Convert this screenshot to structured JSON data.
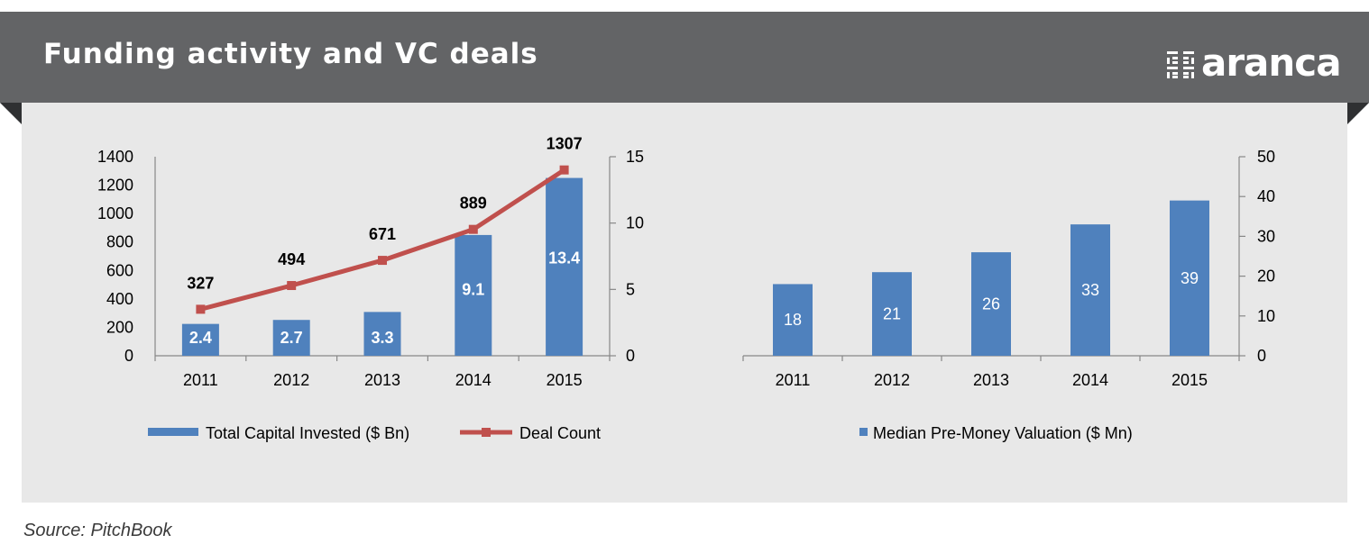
{
  "header": {
    "title": "Funding activity and VC deals",
    "logo_text": "aranca"
  },
  "source": "Source: PitchBook",
  "colors": {
    "header_bg": "#636466",
    "panel_bg": "#e8e8e8",
    "bar": "#4f81bd",
    "line": "#c0504d"
  },
  "chart_data": [
    {
      "type": "bar",
      "categories": [
        "2011",
        "2012",
        "2013",
        "2014",
        "2015"
      ],
      "series": [
        {
          "name": "Total Capital Invested ($ Bn)",
          "type": "bar",
          "axis": "right",
          "values": [
            2.4,
            2.7,
            3.3,
            9.1,
            13.4
          ],
          "labels": [
            "2.4",
            "2.7",
            "3.3",
            "9.1",
            "13.4"
          ]
        },
        {
          "name": "Deal Count",
          "type": "line",
          "axis": "left",
          "values": [
            327,
            494,
            671,
            889,
            1307
          ],
          "labels": [
            "327",
            "494",
            "671",
            "889",
            "1307"
          ]
        }
      ],
      "y_left": {
        "ylim": [
          0,
          1400
        ],
        "ticks": [
          "0",
          "200",
          "400",
          "600",
          "800",
          "1000",
          "1200",
          "1400"
        ]
      },
      "y_right": {
        "ylim": [
          0,
          15
        ],
        "ticks": [
          "0",
          "5",
          "10",
          "15"
        ]
      },
      "legend_position": "bottom"
    },
    {
      "type": "bar",
      "categories": [
        "2011",
        "2012",
        "2013",
        "2014",
        "2015"
      ],
      "series": [
        {
          "name": "Median Pre-Money Valuation ($ Mn)",
          "values": [
            18,
            21,
            26,
            33,
            39
          ],
          "labels": [
            "18",
            "21",
            "26",
            "33",
            "39"
          ]
        }
      ],
      "y_right": {
        "ylim": [
          0,
          50
        ],
        "ticks": [
          "0",
          "10",
          "20",
          "30",
          "40",
          "50"
        ]
      },
      "legend_position": "bottom"
    }
  ]
}
